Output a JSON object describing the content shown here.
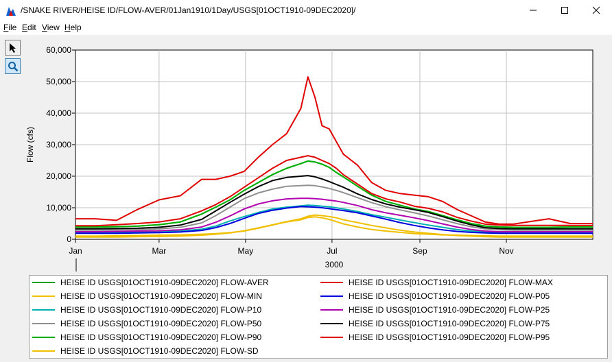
{
  "window": {
    "title": "/SNAKE RIVER/HEISE ID/FLOW-AVER/01Jan1910/1Day/USGS[01OCT1910-09DEC2020]/",
    "icon": "chart-app-icon"
  },
  "menu": {
    "file": {
      "mnemonic": "F",
      "rest": "ile"
    },
    "edit": {
      "mnemonic": "E",
      "rest": "dit"
    },
    "view": {
      "mnemonic": "V",
      "rest": "iew"
    },
    "help": {
      "mnemonic": "H",
      "rest": "elp"
    }
  },
  "toolbar": {
    "pointer_icon": "pointer-arrow-icon",
    "zoom_icon": "magnifier-icon"
  },
  "chart_data": {
    "type": "line",
    "title": "",
    "xlabel": "3000",
    "ylabel": "Flow (cfs)",
    "x_domain": [
      1,
      366
    ],
    "ylim": [
      0,
      60000
    ],
    "y_ticks": [
      {
        "value": 0,
        "label": "0"
      },
      {
        "value": 10000,
        "label": "10,000"
      },
      {
        "value": 20000,
        "label": "20,000"
      },
      {
        "value": 30000,
        "label": "30,000"
      },
      {
        "value": 40000,
        "label": "40,000"
      },
      {
        "value": 50000,
        "label": "50,000"
      },
      {
        "value": 60000,
        "label": "60,000"
      }
    ],
    "x_ticks": [
      {
        "day": 1,
        "label": "Jan"
      },
      {
        "day": 60,
        "label": "Mar"
      },
      {
        "day": 121,
        "label": "May"
      },
      {
        "day": 182,
        "label": "Jul"
      },
      {
        "day": 244,
        "label": "Sep"
      },
      {
        "day": 305,
        "label": "Nov"
      }
    ],
    "grid": true,
    "legend_position": "bottom",
    "x": [
      1,
      15,
      30,
      45,
      60,
      75,
      90,
      100,
      110,
      120,
      130,
      140,
      150,
      160,
      165,
      170,
      175,
      180,
      185,
      190,
      200,
      210,
      220,
      230,
      240,
      250,
      260,
      270,
      280,
      290,
      300,
      310,
      320,
      335,
      350,
      366
    ],
    "series": [
      {
        "name": "HEISE ID USGS[01OCT1910-09DEC2020] FLOW-AVER",
        "color": "#00a000",
        "values": [
          3900,
          3900,
          4000,
          4200,
          4600,
          5500,
          8000,
          10200,
          12500,
          15500,
          18000,
          20500,
          22500,
          24000,
          24800,
          24500,
          23800,
          22800,
          21200,
          19800,
          16800,
          14000,
          12000,
          10800,
          9600,
          8800,
          7500,
          6200,
          5000,
          4200,
          3900,
          3800,
          3800,
          3800,
          3900,
          3900
        ]
      },
      {
        "name": "HEISE ID USGS[01OCT1910-09DEC2020] FLOW-MIN",
        "color": "#f0c000",
        "values": [
          1000,
          1000,
          1100,
          1200,
          1300,
          1400,
          1600,
          1800,
          2100,
          2600,
          3500,
          4500,
          5500,
          6200,
          6900,
          7100,
          6800,
          6300,
          5600,
          4900,
          3900,
          3100,
          2600,
          2200,
          1800,
          1600,
          1400,
          1300,
          1200,
          1100,
          1000,
          1000,
          1000,
          1000,
          1000,
          1000
        ]
      },
      {
        "name": "HEISE ID USGS[01OCT1910-09DEC2020] FLOW-P10",
        "color": "#00b0b0",
        "values": [
          2200,
          2200,
          2200,
          2300,
          2400,
          2600,
          3200,
          4200,
          5800,
          7200,
          8500,
          9600,
          10200,
          10600,
          10800,
          10700,
          10500,
          10300,
          10000,
          9600,
          8800,
          7800,
          7000,
          6100,
          5300,
          4500,
          3800,
          3100,
          2600,
          2300,
          2200,
          2200,
          2200,
          2200,
          2200,
          2200
        ]
      },
      {
        "name": "HEISE ID USGS[01OCT1910-09DEC2020] FLOW-P50",
        "color": "#909090",
        "values": [
          2900,
          2900,
          3000,
          3100,
          3300,
          3800,
          5200,
          7500,
          10200,
          12900,
          14700,
          15900,
          16800,
          17000,
          17100,
          17000,
          16600,
          16100,
          15500,
          14800,
          13200,
          11600,
          10300,
          9300,
          8400,
          7400,
          6200,
          5000,
          4000,
          3300,
          3000,
          2900,
          2900,
          2900,
          2900,
          2900
        ]
      },
      {
        "name": "HEISE ID USGS[01OCT1910-09DEC2020] FLOW-P90",
        "color": "#00b000",
        "values": [
          3900,
          3900,
          4000,
          4200,
          4600,
          5500,
          8000,
          10200,
          12500,
          15500,
          18000,
          20500,
          22500,
          24000,
          24800,
          24500,
          23800,
          22800,
          21200,
          19800,
          16800,
          14000,
          12000,
          10800,
          9600,
          8800,
          7500,
          6200,
          5000,
          4200,
          3900,
          3800,
          3800,
          3800,
          3900,
          3900
        ]
      },
      {
        "name": "HEISE ID USGS[01OCT1910-09DEC2020] FLOW-SD",
        "color": "#f0c000",
        "values": [
          700,
          700,
          700,
          800,
          900,
          1000,
          1300,
          1600,
          2000,
          2700,
          3600,
          4600,
          5600,
          6500,
          7300,
          7700,
          7500,
          7200,
          6800,
          6200,
          5300,
          4400,
          3600,
          2900,
          2300,
          1900,
          1500,
          1200,
          1000,
          800,
          700,
          700,
          700,
          700,
          700,
          700
        ]
      },
      {
        "name": "HEISE ID USGS[01OCT1910-09DEC2020] FLOW-MAX",
        "color": "#e00000",
        "values": [
          6500,
          6500,
          6000,
          9500,
          12500,
          13800,
          19000,
          19000,
          20000,
          21500,
          26000,
          30000,
          33500,
          41500,
          51500,
          45000,
          36000,
          35000,
          31000,
          27000,
          23500,
          18000,
          15500,
          14500,
          14000,
          13500,
          12000,
          9500,
          7500,
          5500,
          4800,
          4800,
          5500,
          6500,
          5000,
          5000
        ]
      },
      {
        "name": "HEISE ID USGS[01OCT1910-09DEC2020] FLOW-P05",
        "color": "#0000e0",
        "values": [
          1900,
          1900,
          1900,
          2000,
          2100,
          2300,
          2800,
          3700,
          5000,
          6600,
          8200,
          9200,
          9900,
          10400,
          10300,
          10200,
          10000,
          9700,
          9400,
          9100,
          8400,
          7400,
          6400,
          5300,
          4400,
          3600,
          3000,
          2500,
          2200,
          2000,
          1900,
          1900,
          1900,
          1900,
          1900,
          1900
        ]
      },
      {
        "name": "HEISE ID USGS[01OCT1910-09DEC2020] FLOW-P25",
        "color": "#b000b0",
        "values": [
          2400,
          2400,
          2500,
          2600,
          2700,
          3000,
          3900,
          5400,
          7400,
          9600,
          11200,
          12200,
          12800,
          13000,
          13000,
          12900,
          12700,
          12400,
          12100,
          11700,
          10700,
          9400,
          8400,
          7600,
          6800,
          5900,
          4900,
          3900,
          3100,
          2600,
          2400,
          2400,
          2400,
          2400,
          2400,
          2400
        ]
      },
      {
        "name": "HEISE ID USGS[01OCT1910-09DEC2020] FLOW-P75",
        "color": "#000000",
        "values": [
          3300,
          3300,
          3400,
          3500,
          3800,
          4500,
          6300,
          9000,
          11700,
          14300,
          16700,
          18600,
          19600,
          20000,
          20200,
          19800,
          19100,
          18300,
          17400,
          16500,
          14400,
          12600,
          11200,
          10200,
          9400,
          8500,
          7200,
          5800,
          4600,
          3700,
          3400,
          3300,
          3300,
          3300,
          3300,
          3300
        ]
      },
      {
        "name": "HEISE ID USGS[01OCT1910-09DEC2020] FLOW-P95",
        "color": "#e00000",
        "values": [
          4300,
          4300,
          4600,
          5000,
          5500,
          6500,
          9000,
          11000,
          13500,
          16500,
          19500,
          22500,
          25000,
          26000,
          26500,
          26000,
          25000,
          24000,
          22500,
          20500,
          17500,
          14500,
          12800,
          11800,
          10500,
          9800,
          8700,
          7000,
          5800,
          4800,
          4500,
          4400,
          4400,
          4400,
          4400,
          4400
        ]
      }
    ]
  }
}
